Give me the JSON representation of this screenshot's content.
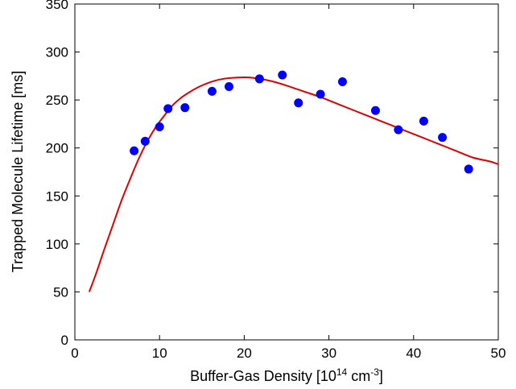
{
  "chart_data": {
    "type": "scatter",
    "title": "",
    "xlabel": {
      "main": "Buffer-Gas Density [10",
      "exp1": "14",
      "mid": " cm",
      "exp2": "-3",
      "end": "]"
    },
    "ylabel": "Trapped Molecule Lifetime [ms]",
    "xlim": [
      0,
      50
    ],
    "ylim": [
      0,
      350
    ],
    "xticks": [
      0,
      10,
      20,
      30,
      40,
      50
    ],
    "yticks": [
      0,
      50,
      100,
      150,
      200,
      250,
      300,
      350
    ],
    "grid": false,
    "legend": "none",
    "series": [
      {
        "kind": "points",
        "color": "#0000ff",
        "x": [
          7.0,
          8.3,
          10.0,
          11.0,
          13.0,
          16.2,
          18.2,
          21.8,
          24.5,
          26.4,
          29.0,
          31.6,
          35.5,
          38.2,
          41.2,
          43.4,
          46.5
        ],
        "y": [
          197,
          207,
          222,
          241,
          242,
          259,
          264,
          272,
          276,
          247,
          256,
          269,
          239,
          219,
          228,
          211,
          178
        ]
      },
      {
        "kind": "fit-curve",
        "color": "#e00000",
        "x": [
          1.7,
          2.5,
          3.5,
          4.5,
          5.5,
          6.5,
          7.5,
          8.5,
          9.5,
          10.5,
          11.5,
          12.5,
          13.5,
          14.5,
          15.5,
          16.5,
          17.5,
          18.5,
          19.5,
          20.5,
          21.5,
          22.5,
          23.5,
          25,
          27,
          29,
          31,
          33,
          35,
          37,
          39,
          41,
          43,
          45,
          47,
          49,
          50
        ],
        "y": [
          50,
          69,
          95,
          120,
          145,
          167,
          188,
          206,
          221,
          233,
          244,
          252,
          258,
          263,
          267,
          270,
          272,
          273,
          273.5,
          273.5,
          272.5,
          271,
          269,
          265,
          259,
          253,
          246,
          239,
          232,
          225,
          218,
          211,
          204,
          197,
          190,
          186,
          183
        ]
      }
    ]
  }
}
